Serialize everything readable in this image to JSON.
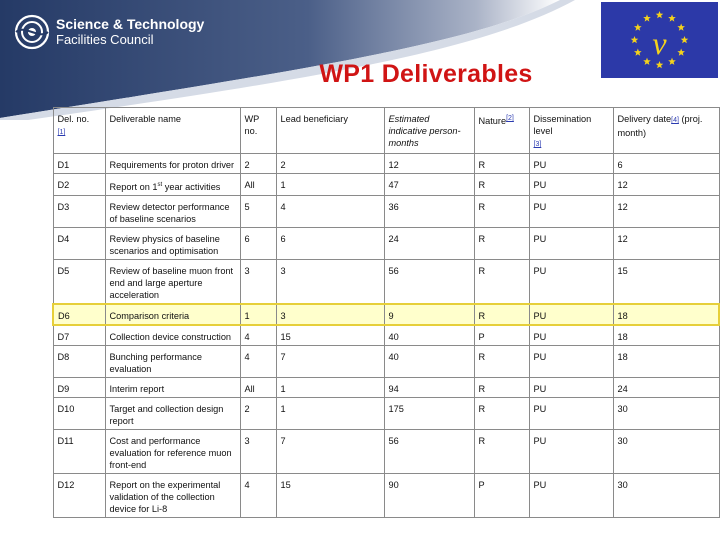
{
  "logo": {
    "line1": "Science & Technology",
    "line2": "Facilities Council"
  },
  "title": "WP1 Deliverables",
  "colors": {
    "title": "#d01414",
    "band": "#2c3e6b",
    "flag": "#2c39a8",
    "stars": "#f4d21c",
    "highlight_fill": "#ffffcc",
    "highlight_border": "#e6cf3a"
  },
  "table": {
    "headers": {
      "del_no": "Del. no.",
      "del_no_note": "[1]",
      "name": "Deliverable name",
      "wp": "WP no.",
      "lead": "Lead beneficiary",
      "effort": "Estimated indicative person-months",
      "nature": "Nature",
      "nature_note": "[2]",
      "dissemination": "Dissemination level",
      "dissemination_note": "[3]",
      "delivery": "Delivery date",
      "delivery_note": "[4]",
      "delivery_suffix": "(proj. month)"
    },
    "rows": [
      {
        "no": "D1",
        "name": "Requirements for proton driver",
        "wp": "2",
        "lead": "2",
        "pm": "12",
        "nature": "R",
        "level": "PU",
        "month": "6"
      },
      {
        "no": "D2",
        "name_pre": "Report on 1",
        "name_sup": "st",
        "name_post": " year activities",
        "wp": "All",
        "lead": "1",
        "pm": "47",
        "nature": "R",
        "level": "PU",
        "month": "12"
      },
      {
        "no": "D3",
        "name": "Review detector performance of baseline scenarios",
        "wp": "5",
        "lead": "4",
        "pm": "36",
        "nature": "R",
        "level": "PU",
        "month": "12"
      },
      {
        "no": "D4",
        "name": "Review physics of baseline scenarios and optimisation",
        "wp": "6",
        "lead": "6",
        "pm": "24",
        "nature": "R",
        "level": "PU",
        "month": "12"
      },
      {
        "no": "D5",
        "name": "Review of baseline muon front end and large aperture acceleration",
        "wp": "3",
        "lead": "3",
        "pm": "56",
        "nature": "R",
        "level": "PU",
        "month": "15"
      },
      {
        "no": "D6",
        "name": "Comparison criteria",
        "wp": "1",
        "lead": "3",
        "pm": "9",
        "nature": "R",
        "level": "PU",
        "month": "18"
      },
      {
        "no": "D7",
        "name": "Collection device construction",
        "wp": "4",
        "lead": "15",
        "pm": "40",
        "nature": "P",
        "level": "PU",
        "month": "18"
      },
      {
        "no": "D8",
        "name": "Bunching performance evaluation",
        "wp": "4",
        "lead": "7",
        "pm": "40",
        "nature": "R",
        "level": "PU",
        "month": "18"
      },
      {
        "no": "D9",
        "name": "Interim report",
        "wp": "All",
        "lead": "1",
        "pm": "94",
        "nature": "R",
        "level": "PU",
        "month": "24"
      },
      {
        "no": "D10",
        "name": "Target and collection design report",
        "wp": "2",
        "lead": "1",
        "pm": "175",
        "nature": "R",
        "level": "PU",
        "month": "30"
      },
      {
        "no": "D11",
        "name": "Cost and performance evaluation for reference muon front-end",
        "wp": "3",
        "lead": "7",
        "pm": "56",
        "nature": "R",
        "level": "PU",
        "month": "30"
      },
      {
        "no": "D12",
        "name": "Report on the experimental validation of the collection device for Li-8",
        "wp": "4",
        "lead": "15",
        "pm": "90",
        "nature": "P",
        "level": "PU",
        "month": "30"
      }
    ]
  }
}
